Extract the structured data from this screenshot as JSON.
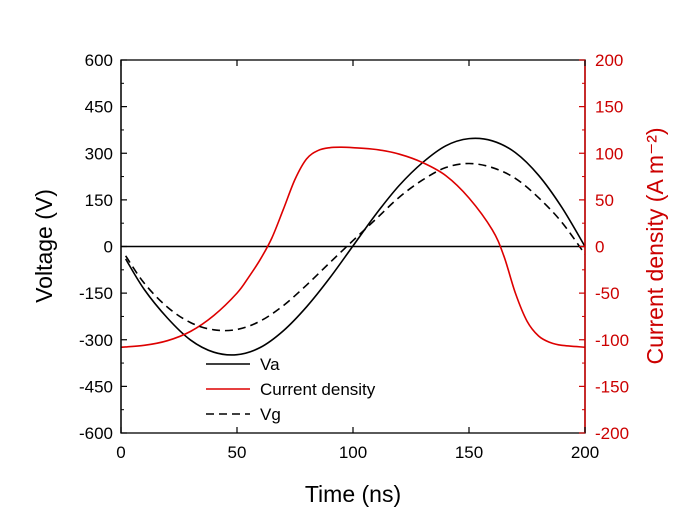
{
  "chart_data": {
    "type": "line",
    "title": "",
    "xlabel": "Time (ns)",
    "ylabel_left": "Voltage (V)",
    "ylabel_right": "Current density (A m⁻²)",
    "xlim": [
      0,
      200
    ],
    "ylim_left": [
      -600,
      600
    ],
    "ylim_right": [
      -200,
      200
    ],
    "x_ticks": [
      0,
      50,
      100,
      150,
      200
    ],
    "y_left_ticks": [
      600,
      450,
      300,
      150,
      0,
      -150,
      -300,
      -450,
      -600
    ],
    "y_right_ticks": [
      200,
      150,
      100,
      50,
      0,
      -50,
      -100,
      -150,
      -200
    ],
    "grid": false,
    "zero_line": true,
    "legend_position": "bottom-left",
    "colors": {
      "left_axis": "#000000",
      "right_axis": "#cc0000",
      "va": "#000000",
      "current": "#dd0000",
      "vg": "#000000"
    },
    "series": [
      {
        "name": "Va",
        "axis": "left",
        "style": "solid",
        "x": [
          2,
          10,
          20,
          30,
          40,
          50,
          60,
          70,
          80,
          90,
          100,
          110,
          120,
          130,
          140,
          150,
          160,
          170,
          180,
          190,
          200
        ],
        "y": [
          -40,
          -138,
          -230,
          -301,
          -340,
          -348,
          -325,
          -271,
          -194,
          -101,
          2,
          105,
          197,
          270,
          324,
          347,
          340,
          302,
          229,
          126,
          0
        ]
      },
      {
        "name": "Current density",
        "axis": "right",
        "style": "solid",
        "x": [
          0,
          10,
          20,
          30,
          40,
          50,
          55,
          60,
          65,
          70,
          75,
          80,
          85,
          90,
          95,
          100,
          110,
          120,
          130,
          140,
          150,
          160,
          165,
          170,
          175,
          180,
          185,
          190,
          200
        ],
        "y": [
          -108,
          -106,
          -101,
          -91,
          -74,
          -50,
          -33,
          -14,
          9,
          40,
          72,
          94,
          103,
          106,
          106.5,
          106,
          104,
          99,
          90,
          76,
          52,
          18,
          -10,
          -50,
          -80,
          -96,
          -103,
          -106,
          -108
        ]
      },
      {
        "name": "Vg",
        "axis": "left",
        "style": "dashed",
        "x": [
          2,
          10,
          20,
          30,
          40,
          50,
          60,
          70,
          80,
          90,
          100,
          110,
          120,
          130,
          140,
          150,
          160,
          170,
          180,
          190,
          200
        ],
        "y": [
          -30,
          -118,
          -195,
          -245,
          -268,
          -267,
          -240,
          -190,
          -124,
          -52,
          19,
          89,
          159,
          214,
          254,
          267,
          254,
          219,
          157,
          78,
          -25
        ]
      }
    ]
  }
}
